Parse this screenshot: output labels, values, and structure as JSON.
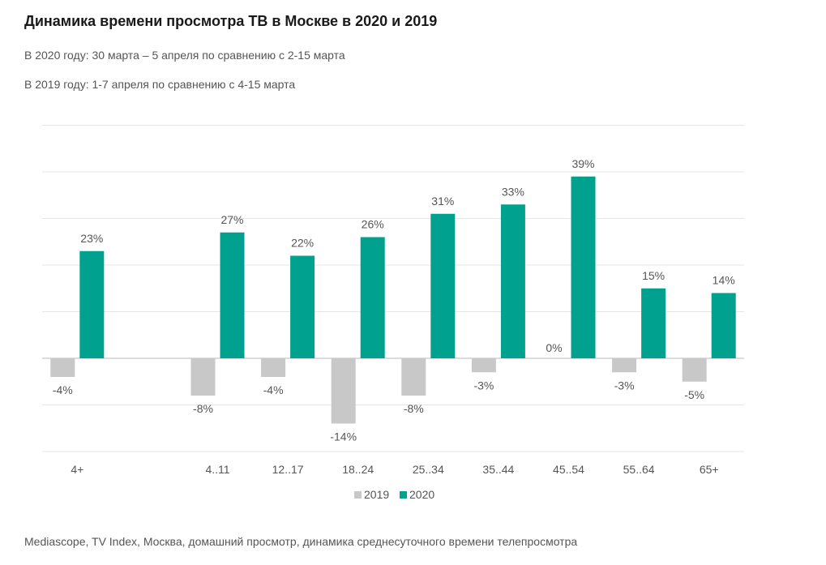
{
  "header": {
    "title": "Динамика времени просмотра ТВ в Москве в 2020 и 2019",
    "subtitle_2020": "В 2020 году: 30 марта – 5 апреля по сравнению с 2-15 марта",
    "subtitle_2019": "В 2019 году: 1-7 апреля по сравнению с 4-15 марта"
  },
  "footer": {
    "source": "Mediascope, TV Index, Москва, домашний просмотр, динамика среднесуточного времени телепросмотра"
  },
  "colors": {
    "series_2019": "#c8c8c8",
    "series_2020": "#00a18e",
    "grid": "#e6e6e6",
    "axis": "#d0d0d0",
    "text": "#555555"
  },
  "chart_data": {
    "type": "bar",
    "categories": [
      "4+",
      "",
      "4..11",
      "12..17",
      "18..24",
      "25..34",
      "35..44",
      "45..54",
      "55..64",
      "65+"
    ],
    "series": [
      {
        "name": "2019",
        "values": [
          -4,
          null,
          -8,
          -4,
          -14,
          -8,
          -3,
          0,
          -3,
          -5
        ],
        "labels": [
          "-4%",
          "",
          "-8%",
          "-4%",
          "-14%",
          "-8%",
          "-3%",
          "0%",
          "-3%",
          "-5%"
        ]
      },
      {
        "name": "2020",
        "values": [
          23,
          null,
          27,
          22,
          26,
          31,
          33,
          39,
          15,
          14
        ],
        "labels": [
          "23%",
          "",
          "27%",
          "22%",
          "26%",
          "31%",
          "33%",
          "39%",
          "15%",
          "14%"
        ]
      }
    ],
    "ylim": [
      -20,
      50
    ],
    "gridlines": [
      -20,
      -10,
      0,
      10,
      20,
      30,
      40,
      50
    ],
    "grid": true,
    "legend_position": "bottom-center",
    "xlabel": "",
    "ylabel": ""
  }
}
